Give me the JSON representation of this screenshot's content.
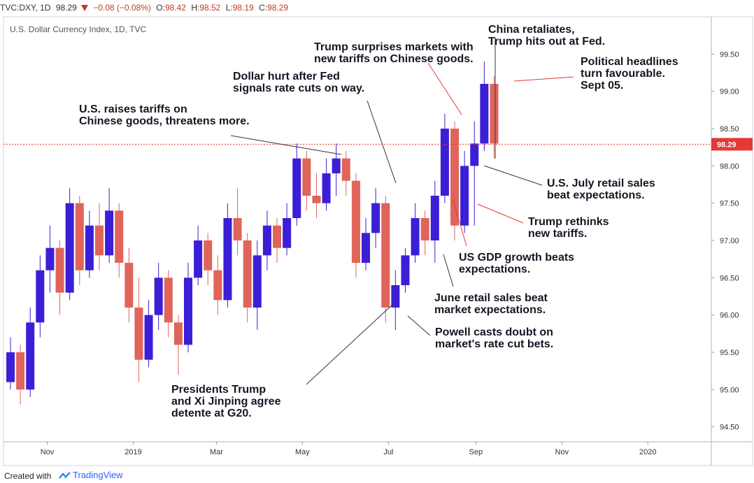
{
  "header": {
    "symbol": "TVC:DXY, 1D",
    "last": "98.29",
    "change": "−0.08 (−0.08%)",
    "o_label": "O:",
    "o": "98.42",
    "h_label": "H:",
    "h": "98.52",
    "l_label": "L:",
    "l": "98.19",
    "c_label": "C:",
    "c": "98.29"
  },
  "footer": {
    "created_with": "Created with",
    "brand": "TradingView"
  },
  "colors": {
    "up": "#3b1fd6",
    "down": "#e0645a",
    "price_line": "#e03a3a",
    "text": "#131722"
  },
  "chart_data": {
    "type": "candlestick",
    "title": "U.S. Dollar Currency Index, 1D, TVC",
    "ylim": [
      94.3,
      100.0
    ],
    "yticks": [
      94.5,
      95.0,
      95.5,
      96.0,
      96.5,
      97.0,
      97.5,
      98.0,
      98.5,
      99.0,
      99.5
    ],
    "ytick_labels": [
      "94.50",
      "95.00",
      "95.50",
      "96.00",
      "96.50",
      "97.00",
      "97.50",
      "98.00",
      "98.50",
      "99.00",
      "99.50"
    ],
    "xlim": [
      "2018-10-01",
      "2020-02-15"
    ],
    "xticks": [
      "2018-11-01",
      "2019-01-01",
      "2019-03-01",
      "2019-05-01",
      "2019-07-01",
      "2019-09-01",
      "2019-11-01",
      "2020-01-01"
    ],
    "xtick_labels": [
      "Nov",
      "2019",
      "Mar",
      "May",
      "Jul",
      "Sep",
      "Nov",
      "2020"
    ],
    "last_price": 98.29,
    "last_price_label": "98.29",
    "ohlc": [
      {
        "date": "2018-10-01",
        "o": 95.1,
        "h": 95.7,
        "l": 95.0,
        "c": 95.5
      },
      {
        "date": "2018-10-08",
        "o": 95.5,
        "h": 95.6,
        "l": 94.8,
        "c": 95.0
      },
      {
        "date": "2018-10-15",
        "o": 95.0,
        "h": 96.1,
        "l": 94.9,
        "c": 95.9
      },
      {
        "date": "2018-10-22",
        "o": 95.9,
        "h": 96.8,
        "l": 95.7,
        "c": 96.6
      },
      {
        "date": "2018-10-29",
        "o": 96.6,
        "h": 97.2,
        "l": 96.3,
        "c": 96.9
      },
      {
        "date": "2018-11-05",
        "o": 96.9,
        "h": 97.0,
        "l": 96.0,
        "c": 96.3
      },
      {
        "date": "2018-11-12",
        "o": 96.3,
        "h": 97.7,
        "l": 96.2,
        "c": 97.5
      },
      {
        "date": "2018-11-19",
        "o": 97.5,
        "h": 97.6,
        "l": 96.4,
        "c": 96.6
      },
      {
        "date": "2018-11-26",
        "o": 96.6,
        "h": 97.4,
        "l": 96.5,
        "c": 97.2
      },
      {
        "date": "2018-12-03",
        "o": 97.2,
        "h": 97.5,
        "l": 96.6,
        "c": 96.8
      },
      {
        "date": "2018-12-10",
        "o": 96.8,
        "h": 97.7,
        "l": 96.7,
        "c": 97.4
      },
      {
        "date": "2018-12-17",
        "o": 97.4,
        "h": 97.5,
        "l": 96.5,
        "c": 96.7
      },
      {
        "date": "2018-12-24",
        "o": 96.7,
        "h": 96.9,
        "l": 95.9,
        "c": 96.1
      },
      {
        "date": "2018-12-31",
        "o": 96.1,
        "h": 96.5,
        "l": 95.1,
        "c": 95.4
      },
      {
        "date": "2019-01-07",
        "o": 95.4,
        "h": 96.2,
        "l": 95.3,
        "c": 96.0
      },
      {
        "date": "2019-01-14",
        "o": 96.0,
        "h": 96.7,
        "l": 95.8,
        "c": 96.5
      },
      {
        "date": "2019-01-21",
        "o": 96.5,
        "h": 96.6,
        "l": 95.7,
        "c": 95.9
      },
      {
        "date": "2019-01-28",
        "o": 95.9,
        "h": 96.0,
        "l": 95.2,
        "c": 95.6
      },
      {
        "date": "2019-02-04",
        "o": 95.6,
        "h": 96.7,
        "l": 95.5,
        "c": 96.5
      },
      {
        "date": "2019-02-11",
        "o": 96.5,
        "h": 97.2,
        "l": 96.4,
        "c": 97.0
      },
      {
        "date": "2019-02-18",
        "o": 97.0,
        "h": 97.1,
        "l": 96.4,
        "c": 96.6
      },
      {
        "date": "2019-02-25",
        "o": 96.6,
        "h": 96.8,
        "l": 96.0,
        "c": 96.2
      },
      {
        "date": "2019-03-04",
        "o": 96.2,
        "h": 97.5,
        "l": 96.1,
        "c": 97.3
      },
      {
        "date": "2019-03-11",
        "o": 97.3,
        "h": 97.7,
        "l": 96.8,
        "c": 97.0
      },
      {
        "date": "2019-03-18",
        "o": 97.0,
        "h": 97.1,
        "l": 95.9,
        "c": 96.1
      },
      {
        "date": "2019-03-25",
        "o": 96.1,
        "h": 97.0,
        "l": 95.8,
        "c": 96.8
      },
      {
        "date": "2019-04-01",
        "o": 96.8,
        "h": 97.4,
        "l": 96.6,
        "c": 97.2
      },
      {
        "date": "2019-04-08",
        "o": 97.2,
        "h": 97.3,
        "l": 96.7,
        "c": 96.9
      },
      {
        "date": "2019-04-15",
        "o": 96.9,
        "h": 97.5,
        "l": 96.8,
        "c": 97.3
      },
      {
        "date": "2019-04-22",
        "o": 97.3,
        "h": 98.3,
        "l": 97.2,
        "c": 98.1
      },
      {
        "date": "2019-04-29",
        "o": 98.1,
        "h": 98.2,
        "l": 97.4,
        "c": 97.6
      },
      {
        "date": "2019-05-06",
        "o": 97.6,
        "h": 97.9,
        "l": 97.3,
        "c": 97.5
      },
      {
        "date": "2019-05-13",
        "o": 97.5,
        "h": 98.1,
        "l": 97.4,
        "c": 97.9
      },
      {
        "date": "2019-05-20",
        "o": 97.9,
        "h": 98.3,
        "l": 97.6,
        "c": 98.1
      },
      {
        "date": "2019-05-27",
        "o": 98.1,
        "h": 98.2,
        "l": 97.6,
        "c": 97.8
      },
      {
        "date": "2019-06-03",
        "o": 97.8,
        "h": 97.9,
        "l": 96.5,
        "c": 96.7
      },
      {
        "date": "2019-06-10",
        "o": 96.7,
        "h": 97.3,
        "l": 96.6,
        "c": 97.1
      },
      {
        "date": "2019-06-17",
        "o": 97.1,
        "h": 97.7,
        "l": 96.9,
        "c": 97.5
      },
      {
        "date": "2019-06-24",
        "o": 97.5,
        "h": 97.6,
        "l": 95.9,
        "c": 96.1
      },
      {
        "date": "2019-07-01",
        "o": 96.1,
        "h": 96.6,
        "l": 95.8,
        "c": 96.4
      },
      {
        "date": "2019-07-08",
        "o": 96.4,
        "h": 96.9,
        "l": 96.3,
        "c": 96.8
      },
      {
        "date": "2019-07-15",
        "o": 96.8,
        "h": 97.5,
        "l": 96.7,
        "c": 97.3
      },
      {
        "date": "2019-07-22",
        "o": 97.3,
        "h": 97.4,
        "l": 96.8,
        "c": 97.0
      },
      {
        "date": "2019-07-29",
        "o": 97.0,
        "h": 97.8,
        "l": 96.7,
        "c": 97.6
      },
      {
        "date": "2019-08-05",
        "o": 97.6,
        "h": 98.7,
        "l": 97.5,
        "c": 98.5
      },
      {
        "date": "2019-08-12",
        "o": 98.5,
        "h": 98.6,
        "l": 97.0,
        "c": 97.2
      },
      {
        "date": "2019-08-19",
        "o": 97.2,
        "h": 98.2,
        "l": 97.1,
        "c": 98.0
      },
      {
        "date": "2019-08-26",
        "o": 98.0,
        "h": 98.6,
        "l": 97.2,
        "c": 98.3
      },
      {
        "date": "2019-09-02",
        "o": 98.3,
        "h": 99.4,
        "l": 98.2,
        "c": 99.1
      },
      {
        "date": "2019-09-09",
        "o": 99.1,
        "h": 99.2,
        "l": 98.1,
        "c": 98.3
      }
    ]
  },
  "annotations": [
    {
      "id": "us-raises-tariffs",
      "lines": [
        "U.S. raises tariffs on",
        "Chinese goods, threatens more."
      ]
    },
    {
      "id": "dollar-hurt-fed",
      "lines": [
        "Dollar hurt after Fed",
        "signals rate cuts on way."
      ]
    },
    {
      "id": "trump-surprises",
      "lines": [
        "Trump surprises markets with",
        "new tariffs on Chinese goods."
      ]
    },
    {
      "id": "china-retaliates",
      "lines": [
        "China retaliates,",
        "Trump hits out at Fed."
      ]
    },
    {
      "id": "political-headlines",
      "lines": [
        "Political headlines",
        "turn favourable.",
        "Sept 05."
      ]
    },
    {
      "id": "us-july-retail",
      "lines": [
        "U.S. July retail sales",
        "beat expectations."
      ]
    },
    {
      "id": "trump-rethinks",
      "lines": [
        "Trump rethinks",
        "new tariffs."
      ]
    },
    {
      "id": "us-gdp",
      "lines": [
        "US GDP growth beats",
        "expectations."
      ]
    },
    {
      "id": "june-retail",
      "lines": [
        "June retail sales beat",
        "market expectations."
      ]
    },
    {
      "id": "powell-doubt",
      "lines": [
        "Powell casts doubt on",
        "market's rate cut bets."
      ]
    },
    {
      "id": "presidents-g20",
      "lines": [
        "Presidents Trump",
        "and Xi Jinping agree",
        "detente at G20."
      ]
    }
  ]
}
